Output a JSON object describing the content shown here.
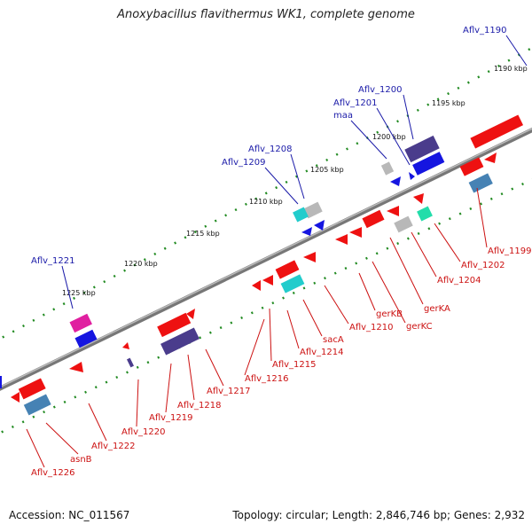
{
  "title": "Anoxybacillus flavithermus WK1, complete genome",
  "footer": {
    "accession": "Accession: NC_011567",
    "topology": "Topology: circular; Length: 2,846,746 bp; Genes: 2,932"
  },
  "scale_labels": [
    "1190 kbp",
    "1195 kbp",
    "1200 kbp",
    "1205 kbp",
    "1210 kbp",
    "1215 kbp",
    "1220 kbp",
    "1225 kbp"
  ],
  "top_labels": [
    "Aflv_1190",
    "Aflv_1200",
    "Aflv_1201",
    "maa",
    "Aflv_1208",
    "Aflv_1209",
    "Aflv_1221"
  ],
  "bottom_labels": [
    "Aflv_1199",
    "Aflv_1202",
    "Aflv_1204",
    "gerKA",
    "gerKB",
    "gerKC",
    "Aflv_1210",
    "sacA",
    "Aflv_1214",
    "Aflv_1215",
    "Aflv_1216",
    "Aflv_1217",
    "Aflv_1218",
    "Aflv_1219",
    "Aflv_1220",
    "Aflv_1222",
    "asnB",
    "Aflv_1226"
  ],
  "colors": {
    "backbone": "#888888",
    "ruler_dot": "#228b22",
    "forward_gene": "#ee1111",
    "reverse_gene": "#1111ee",
    "blue_label": "#1a1aa8",
    "red_label": "#cc1111"
  }
}
